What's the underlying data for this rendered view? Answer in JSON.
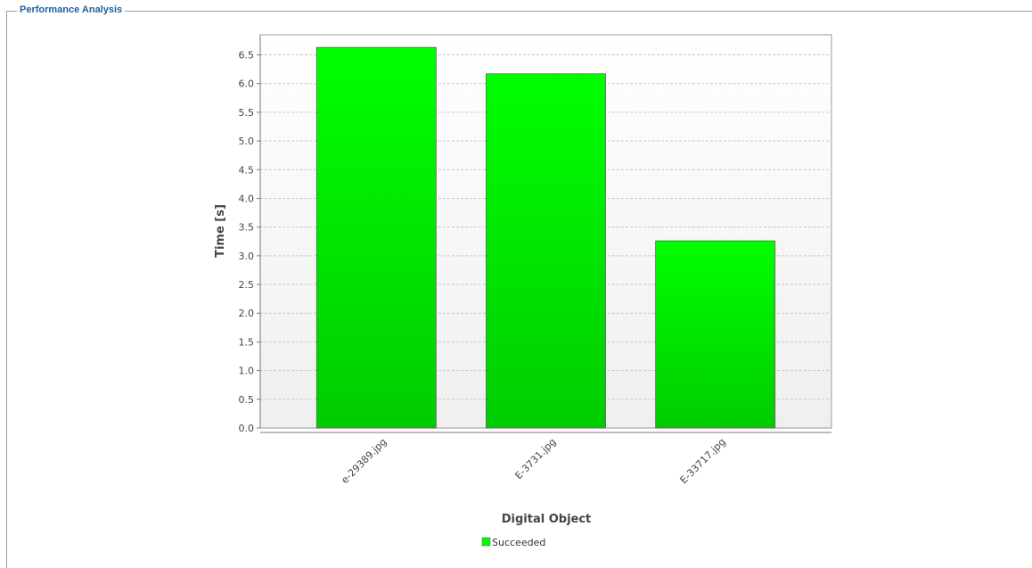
{
  "panel": {
    "title": "Performance Analysis"
  },
  "chart_data": {
    "type": "bar",
    "categories": [
      "e-29389.jpg",
      "E-3731.jpg",
      "E-33717.jpg"
    ],
    "series": [
      {
        "name": "Succeeded",
        "values": [
          6.63,
          6.17,
          3.26
        ],
        "color": "#00ff00"
      }
    ],
    "xlabel": "Digital Object",
    "ylabel": "Time [s]",
    "ylim": [
      0,
      6.85
    ],
    "yticks": [
      "0.0",
      "0.5",
      "1.0",
      "1.5",
      "2.0",
      "2.5",
      "3.0",
      "3.5",
      "4.0",
      "4.5",
      "5.0",
      "5.5",
      "6.0",
      "6.5"
    ],
    "grid": true,
    "legend": "bottom"
  }
}
